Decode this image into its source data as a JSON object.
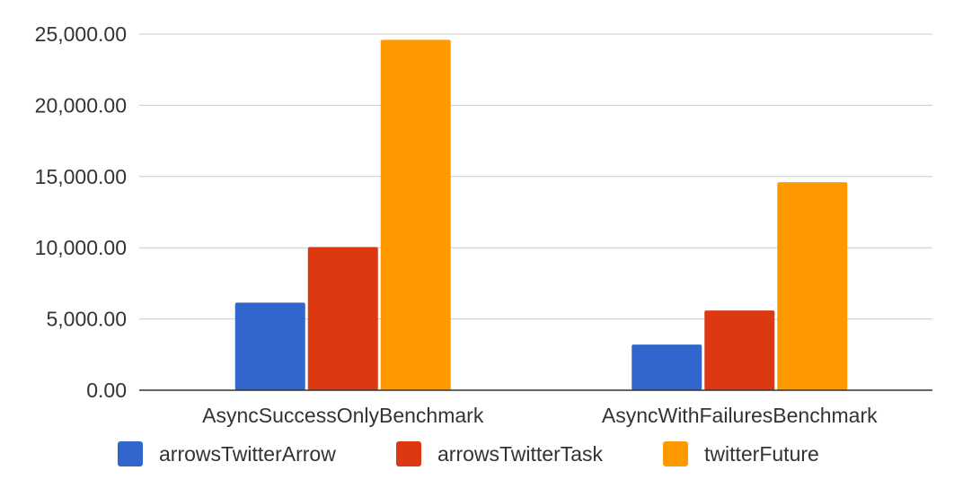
{
  "chart_data": {
    "type": "bar",
    "categories": [
      "AsyncSuccessOnlyBenchmark",
      "AsyncWithFailuresBenchmark"
    ],
    "series": [
      {
        "name": "arrowsTwitterArrow",
        "color": "#3366cc",
        "values": [
          6150,
          3200
        ]
      },
      {
        "name": "arrowsTwitterTask",
        "color": "#dc3912",
        "values": [
          10050,
          5600
        ]
      },
      {
        "name": "twitterFuture",
        "color": "#ff9900",
        "values": [
          24600,
          14600
        ]
      }
    ],
    "yticks": [
      0,
      5000,
      10000,
      15000,
      20000,
      25000
    ],
    "ytick_labels": [
      "0.00",
      "5,000.00",
      "10,000.00",
      "15,000.00",
      "20,000.00",
      "25,000.00"
    ],
    "ylim": [
      0,
      25000
    ],
    "grid": true,
    "legend_position": "bottom"
  }
}
